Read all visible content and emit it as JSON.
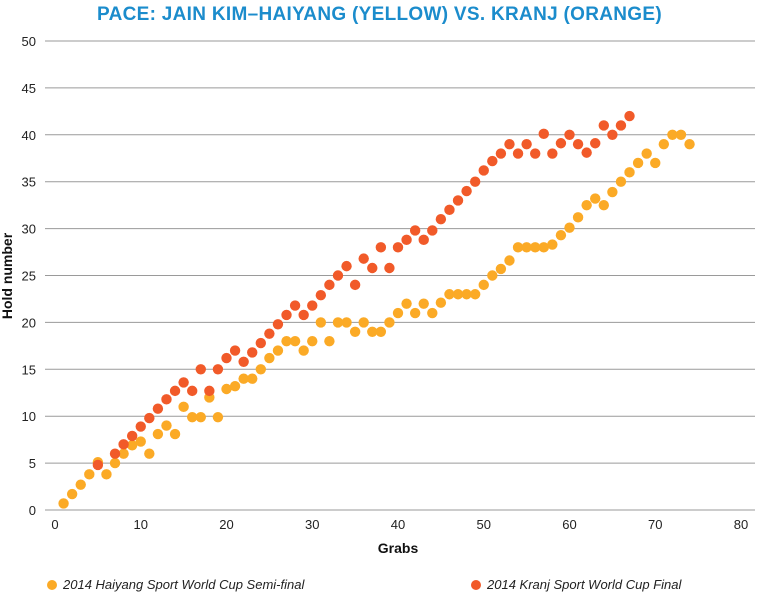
{
  "chart_data": {
    "type": "scatter",
    "title": "PACE: JAIN KIM–HAIYANG (YELLOW) VS. KRANJ (ORANGE)",
    "xlabel": "Grabs",
    "ylabel": "Hold number",
    "xlim": [
      0,
      80
    ],
    "ylim": [
      0,
      50
    ],
    "xticks": [
      0,
      10,
      20,
      30,
      40,
      50,
      60,
      70,
      80
    ],
    "yticks": [
      0,
      5,
      10,
      15,
      20,
      25,
      30,
      35,
      40,
      45,
      50
    ],
    "grid": "horizontal",
    "legend_position": "bottom",
    "series": [
      {
        "name": "2014 Haiyang Sport World Cup Semi-final",
        "color": "#FBAA26",
        "x": [
          1,
          2,
          3,
          4,
          5,
          6,
          7,
          8,
          9,
          10,
          11,
          12,
          13,
          14,
          15,
          16,
          17,
          18,
          19,
          20,
          21,
          22,
          23,
          24,
          25,
          26,
          27,
          28,
          29,
          30,
          31,
          32,
          33,
          34,
          35,
          36,
          37,
          38,
          39,
          40,
          41,
          42,
          43,
          44,
          45,
          46,
          47,
          48,
          49,
          50,
          51,
          52,
          53,
          54,
          55,
          56,
          57,
          58,
          59,
          60,
          61,
          62,
          63,
          64,
          65,
          66,
          67,
          68,
          69,
          70,
          71,
          72,
          73,
          74
        ],
        "y": [
          0.7,
          1.7,
          2.7,
          3.8,
          5.1,
          3.8,
          5,
          6,
          6.9,
          7.3,
          6,
          8.1,
          9,
          8.1,
          11,
          9.9,
          9.9,
          12,
          9.9,
          12.9,
          13.2,
          14,
          14,
          15,
          16.2,
          17,
          18,
          18,
          17,
          18,
          20,
          18,
          20,
          20,
          19,
          20,
          19,
          19,
          20,
          21,
          22,
          21,
          22,
          21,
          22.1,
          23,
          23,
          23,
          23,
          24,
          25,
          25.7,
          26.6,
          28,
          28,
          28,
          28,
          28.3,
          29.3,
          30.1,
          31.2,
          32.5,
          33.2,
          32.5,
          33.9,
          35,
          36,
          37,
          38,
          37,
          39,
          40,
          40,
          39
        ]
      },
      {
        "name": "2014 Kranj Sport World Cup Final",
        "color": "#F15A29",
        "x": [
          5,
          7,
          8,
          9,
          10,
          11,
          12,
          13,
          14,
          15,
          16,
          17,
          18,
          19,
          20,
          21,
          22,
          23,
          24,
          25,
          26,
          27,
          28,
          29,
          30,
          31,
          32,
          33,
          34,
          35,
          36,
          37,
          38,
          39,
          40,
          41,
          42,
          43,
          44,
          45,
          46,
          47,
          48,
          49,
          50,
          51,
          52,
          53,
          54,
          55,
          56,
          57,
          58,
          59,
          60,
          61,
          62,
          63,
          64,
          65,
          66,
          67
        ],
        "y": [
          4.8,
          6,
          7,
          7.9,
          8.9,
          9.8,
          10.8,
          11.8,
          12.7,
          13.6,
          12.7,
          15,
          12.7,
          15,
          16.2,
          17,
          15.8,
          16.8,
          17.8,
          18.8,
          19.8,
          20.8,
          21.8,
          20.8,
          21.8,
          22.9,
          24,
          25,
          26,
          24,
          26.8,
          25.8,
          28,
          25.8,
          28,
          28.8,
          29.8,
          28.8,
          29.8,
          31,
          32,
          33,
          34,
          35,
          36.2,
          37.2,
          38,
          39,
          38,
          39,
          38,
          40.1,
          38,
          39.1,
          40,
          39,
          38.1,
          39.1,
          41,
          40,
          41,
          42
        ]
      }
    ]
  }
}
